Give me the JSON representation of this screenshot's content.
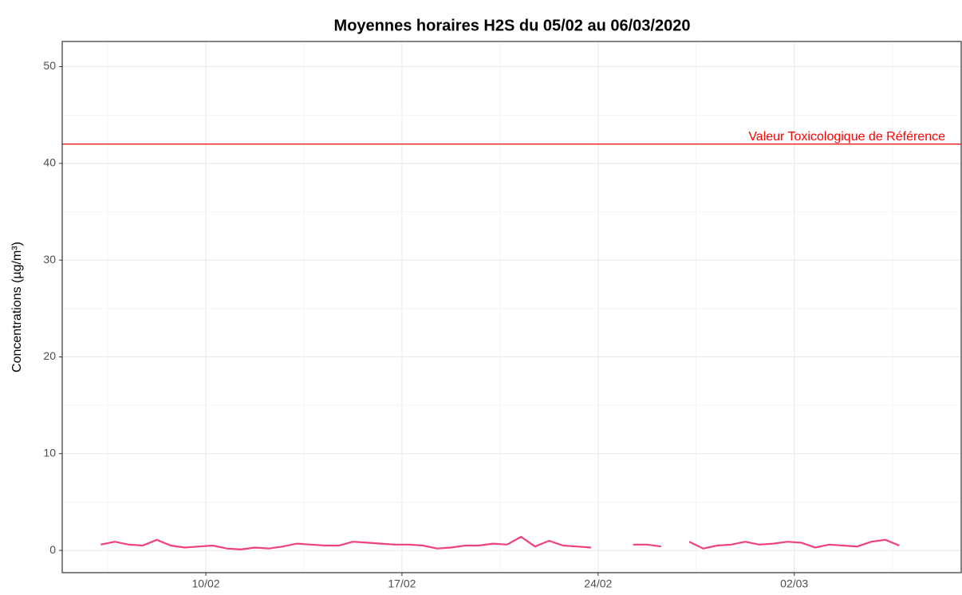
{
  "chart_data": {
    "type": "line",
    "title": "Moyennes horaires H2S du 05/02 au 06/03/2020",
    "y_label": "Concentrations (µg/m³)",
    "xlim": [
      "2020-02-04T21:00",
      "2020-03-07T23:00"
    ],
    "xticks": [
      {
        "value": "2020-02-10T00:00",
        "label": "10/02"
      },
      {
        "value": "2020-02-17T00:00",
        "label": "17/02"
      },
      {
        "value": "2020-02-24T00:00",
        "label": "24/02"
      },
      {
        "value": "2020-03-02T00:00",
        "label": "02/03"
      }
    ],
    "x_minor_ticks": [
      "2020-02-06T12:00",
      "2020-02-13T12:00",
      "2020-02-20T12:00",
      "2020-02-27T12:00",
      "2020-03-05T12:00"
    ],
    "ylim": [
      -2.3,
      52.6
    ],
    "yticks": [
      0,
      10,
      20,
      30,
      40,
      50
    ],
    "y_minor_ticks": [
      5,
      15,
      25,
      35,
      45
    ],
    "grid": true,
    "x": [
      "2020-02-06T06:00",
      "2020-02-06T18:00",
      "2020-02-07T06:00",
      "2020-02-07T18:00",
      "2020-02-08T06:00",
      "2020-02-08T18:00",
      "2020-02-09T06:00",
      "2020-02-09T18:00",
      "2020-02-10T06:00",
      "2020-02-10T18:00",
      "2020-02-11T06:00",
      "2020-02-11T18:00",
      "2020-02-12T06:00",
      "2020-02-12T18:00",
      "2020-02-13T06:00",
      "2020-02-13T18:00",
      "2020-02-14T06:00",
      "2020-02-14T18:00",
      "2020-02-15T06:00",
      "2020-02-15T18:00",
      "2020-02-16T06:00",
      "2020-02-16T18:00",
      "2020-02-17T06:00",
      "2020-02-17T18:00",
      "2020-02-18T06:00",
      "2020-02-18T18:00",
      "2020-02-19T06:00",
      "2020-02-19T18:00",
      "2020-02-20T06:00",
      "2020-02-20T18:00",
      "2020-02-21T06:00",
      "2020-02-21T18:00",
      "2020-02-22T06:00",
      "2020-02-22T18:00",
      "2020-02-23T06:00",
      "2020-02-23T18:00",
      "2020-02-24T06:00",
      "2020-02-24T18:00",
      "2020-02-25T06:00",
      "2020-02-25T18:00",
      "2020-02-26T06:00",
      "2020-02-26T18:00",
      "2020-02-27T06:00",
      "2020-02-27T18:00",
      "2020-02-28T06:00",
      "2020-02-28T18:00",
      "2020-02-29T06:00",
      "2020-02-29T18:00",
      "2020-03-01T06:00",
      "2020-03-01T18:00",
      "2020-03-02T06:00",
      "2020-03-02T18:00",
      "2020-03-03T06:00",
      "2020-03-03T18:00",
      "2020-03-04T06:00",
      "2020-03-04T18:00",
      "2020-03-05T06:00",
      "2020-03-05T18:00"
    ],
    "series": [
      {
        "name": "H2S",
        "color": "#f0407e",
        "values": [
          0.6,
          0.9,
          0.6,
          0.5,
          1.1,
          0.5,
          0.3,
          0.4,
          0.5,
          0.2,
          0.1,
          0.3,
          0.2,
          0.4,
          0.7,
          0.6,
          0.5,
          0.5,
          0.9,
          0.8,
          0.7,
          0.6,
          0.6,
          0.5,
          0.2,
          0.3,
          0.5,
          0.5,
          0.7,
          0.6,
          1.4,
          0.4,
          1.0,
          0.5,
          0.4,
          0.3,
          null,
          null,
          0.6,
          0.6,
          0.4,
          null,
          0.9,
          0.2,
          0.5,
          0.6,
          0.9,
          0.6,
          0.7,
          0.9,
          0.8,
          0.3,
          0.6,
          0.5,
          0.4,
          0.9,
          1.1,
          0.5
        ]
      }
    ],
    "reference_line": {
      "value": 42,
      "label": "Valeur Toxicologique de Référence",
      "color": "#ff0000"
    }
  }
}
